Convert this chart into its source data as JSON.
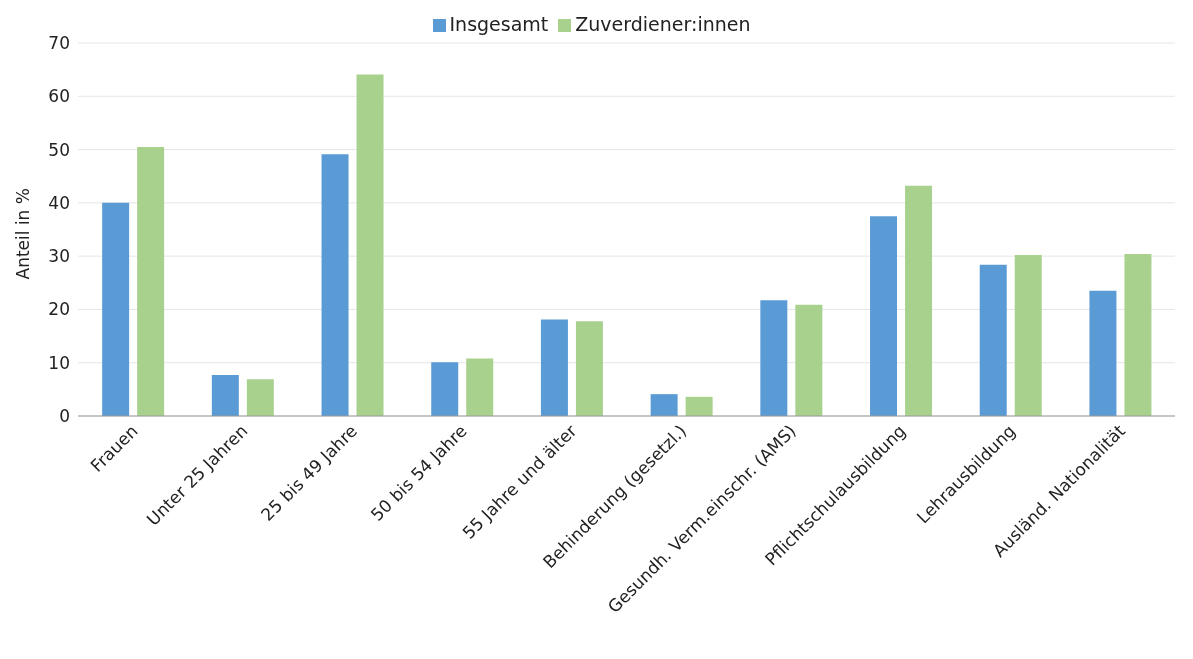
{
  "chart_data": {
    "type": "bar",
    "ylabel": "Anteil in %",
    "categories": [
      "Frauen",
      "Unter 25 Jahren",
      "25 bis 49 Jahre",
      "50 bis 54 Jahre",
      "55 Jahre und älter",
      "Behinderung (gesetzl.)",
      "Gesundh. Verm.einschr. (AMS)",
      "Pflichtschulausbildung",
      "Lehrausbildung",
      "Ausländ. Nationalität"
    ],
    "series": [
      {
        "name": "Insgesamt",
        "color": "#5b9bd5",
        "values": [
          40.0,
          7.7,
          49.1,
          10.1,
          18.1,
          4.1,
          21.7,
          37.5,
          28.4,
          23.5
        ]
      },
      {
        "name": "Zuverdiener:innen",
        "color": "#a9d18e",
        "values": [
          50.5,
          6.9,
          64.1,
          10.8,
          17.8,
          3.6,
          20.9,
          43.2,
          30.2,
          30.4
        ]
      }
    ],
    "ylim": [
      0,
      70
    ],
    "yticks": [
      0,
      10,
      20,
      30,
      40,
      50,
      60,
      70
    ],
    "grid": "y",
    "legend": "top"
  }
}
